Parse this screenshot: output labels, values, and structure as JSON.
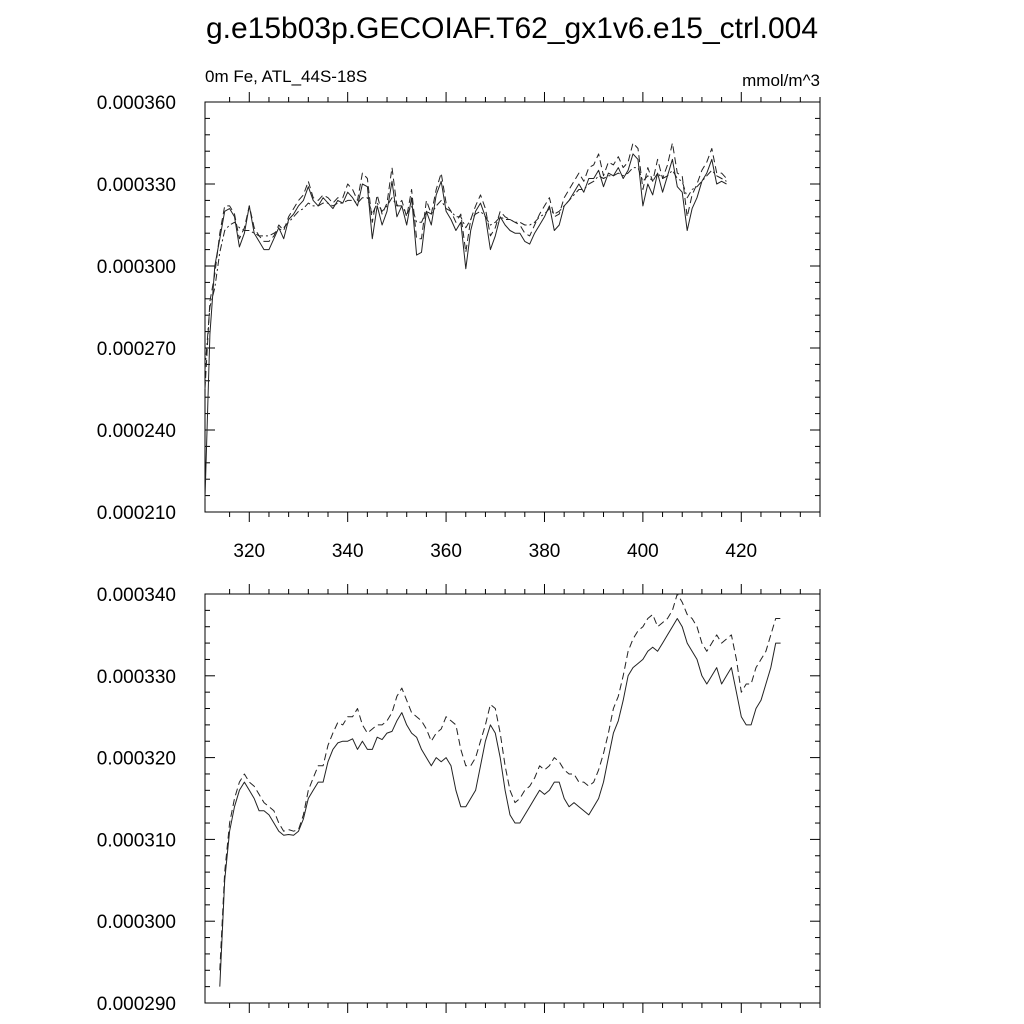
{
  "title": "g.e15b03p.GECOIAF.T62_gx1v6.e15_ctrl.004",
  "chart_data": [
    {
      "type": "line",
      "subtitle_left": "0m Fe, ATL_44S-18S",
      "subtitle_right": "mmol/m^3",
      "xlim": [
        311,
        436
      ],
      "ylim": [
        0.00021,
        0.00036
      ],
      "x_ticks": [
        320,
        340,
        360,
        380,
        400,
        420
      ],
      "x_tick_labels": [
        "320",
        "340",
        "360",
        "380",
        "400",
        "420"
      ],
      "y_ticks": [
        0.00021,
        0.00024,
        0.00027,
        0.0003,
        0.00033,
        0.00036
      ],
      "y_tick_labels": [
        "0.000210",
        "0.000240",
        "0.000270",
        "0.000300",
        "0.000330",
        "0.000360"
      ],
      "x_start": 311,
      "x_step": 1,
      "series": [
        {
          "style": "solid",
          "values": [
            0.000215,
            0.000275,
            0.0003,
            0.00031,
            0.00032,
            0.000321,
            0.000318,
            0.000307,
            0.000312,
            0.000322,
            0.000312,
            0.000309,
            0.000306,
            0.000306,
            0.00031,
            0.000314,
            0.00031,
            0.000317,
            0.000319,
            0.000322,
            0.000324,
            0.000329,
            0.000324,
            0.000322,
            0.000325,
            0.000323,
            0.000321,
            0.000324,
            0.000323,
            0.000327,
            0.000325,
            0.000322,
            0.00033,
            0.000329,
            0.00031,
            0.000322,
            0.000315,
            0.00032,
            0.000331,
            0.000318,
            0.000322,
            0.000315,
            0.000325,
            0.000304,
            0.000305,
            0.00032,
            0.000315,
            0.000326,
            0.000331,
            0.00032,
            0.000317,
            0.000313,
            0.000316,
            0.000299,
            0.000313,
            0.00032,
            0.000323,
            0.000318,
            0.000306,
            0.000311,
            0.000318,
            0.000315,
            0.000313,
            0.000312,
            0.000312,
            0.000309,
            0.000308,
            0.000312,
            0.000315,
            0.000318,
            0.000322,
            0.000313,
            0.000315,
            0.000322,
            0.000324,
            0.000327,
            0.00033,
            0.000327,
            0.000332,
            0.000332,
            0.000335,
            0.000329,
            0.000334,
            0.000333,
            0.000336,
            0.000332,
            0.000335,
            0.000341,
            0.000339,
            0.000322,
            0.00033,
            0.000326,
            0.000334,
            0.000327,
            0.000333,
            0.000339,
            0.000329,
            0.000327,
            0.000313,
            0.000321,
            0.000325,
            0.000331,
            0.000334,
            0.000339,
            0.00033,
            0.000331,
            0.00033
          ]
        },
        {
          "style": "dashed",
          "values": [
            0.000255,
            0.000287,
            0.000297,
            0.000312,
            0.000322,
            0.000322,
            0.000319,
            0.00031,
            0.000314,
            0.000322,
            0.000314,
            0.000311,
            0.000309,
            0.000309,
            0.000311,
            0.000315,
            0.000313,
            0.000318,
            0.000321,
            0.000324,
            0.000326,
            0.000331,
            0.000325,
            0.000324,
            0.000326,
            0.000325,
            0.000323,
            0.000325,
            0.000325,
            0.00033,
            0.000328,
            0.000324,
            0.000334,
            0.000332,
            0.000316,
            0.000326,
            0.000319,
            0.000323,
            0.000336,
            0.000322,
            0.000324,
            0.000318,
            0.000328,
            0.00031,
            0.00031,
            0.000324,
            0.000319,
            0.000328,
            0.000334,
            0.000323,
            0.00032,
            0.000316,
            0.000319,
            0.000305,
            0.000317,
            0.000322,
            0.000326,
            0.000321,
            0.000311,
            0.000314,
            0.00032,
            0.000318,
            0.000317,
            0.000316,
            0.000315,
            0.000312,
            0.000311,
            0.000315,
            0.000319,
            0.000322,
            0.000325,
            0.000318,
            0.000319,
            0.000325,
            0.000328,
            0.000331,
            0.000334,
            0.000331,
            0.000336,
            0.000337,
            0.000341,
            0.000333,
            0.000338,
            0.000337,
            0.00034,
            0.000336,
            0.000338,
            0.000345,
            0.000343,
            0.000328,
            0.000336,
            0.000331,
            0.000339,
            0.000332,
            0.000337,
            0.000345,
            0.000334,
            0.000333,
            0.000318,
            0.000326,
            0.00033,
            0.000335,
            0.000338,
            0.000343,
            0.000334,
            0.000334,
            0.000332
          ]
        },
        {
          "style": "dashdot",
          "values": [
            0.000262,
            0.000285,
            0.000292,
            0.000305,
            0.000313,
            0.000315,
            0.000316,
            0.000314,
            0.000313,
            0.000313,
            0.000312,
            0.000311,
            0.000311,
            0.000311,
            0.000312,
            0.000313,
            0.000314,
            0.000316,
            0.000318,
            0.00032,
            0.000321,
            0.000323,
            0.000322,
            0.000322,
            0.000323,
            0.000323,
            0.000322,
            0.000323,
            0.000323,
            0.000324,
            0.000324,
            0.000323,
            0.000325,
            0.000325,
            0.000319,
            0.000323,
            0.00032,
            0.000322,
            0.000325,
            0.000322,
            0.000322,
            0.000319,
            0.000322,
            0.000316,
            0.000316,
            0.00032,
            0.000319,
            0.000322,
            0.000324,
            0.000321,
            0.00032,
            0.000318,
            0.000318,
            0.000314,
            0.000317,
            0.000319,
            0.00032,
            0.000318,
            0.000315,
            0.000316,
            0.000318,
            0.000317,
            0.000317,
            0.000316,
            0.000316,
            0.000315,
            0.000315,
            0.000316,
            0.000318,
            0.000319,
            0.000321,
            0.000319,
            0.00032,
            0.000322,
            0.000324,
            0.000326,
            0.000328,
            0.000328,
            0.00033,
            0.000331,
            0.000333,
            0.000332,
            0.000333,
            0.000333,
            0.000334,
            0.000333,
            0.000334,
            0.000336,
            0.000336,
            0.000331,
            0.000333,
            0.000331,
            0.000334,
            0.000332,
            0.000333,
            0.000335,
            0.000332,
            0.000331,
            0.000325,
            0.000328,
            0.000329,
            0.000331,
            0.000333,
            0.000335,
            0.000333,
            0.000332,
            0.000331
          ]
        }
      ]
    },
    {
      "type": "line",
      "xlim": [
        311,
        436
      ],
      "ylim": [
        0.00029,
        0.00034
      ],
      "x_ticks": [
        320,
        340,
        360,
        380,
        400,
        420
      ],
      "y_ticks": [
        0.00029,
        0.0003,
        0.00031,
        0.00032,
        0.00033,
        0.00034
      ],
      "y_tick_labels": [
        "0.000290",
        "0.000300",
        "0.000310",
        "0.000320",
        "0.000330",
        "0.000340"
      ],
      "x_start": 314,
      "x_step": 1,
      "series": [
        {
          "style": "solid",
          "values": [
            0.000292,
            0.000305,
            0.000311,
            0.000314,
            0.000316,
            0.000317,
            0.000316,
            0.000315,
            0.0003135,
            0.0003135,
            0.000313,
            0.000312,
            0.000311,
            0.0003105,
            0.0003106,
            0.0003105,
            0.000311,
            0.0003125,
            0.000315,
            0.000316,
            0.000317,
            0.000317,
            0.0003195,
            0.000321,
            0.0003218,
            0.000322,
            0.000322,
            0.0003223,
            0.000321,
            0.000322,
            0.000321,
            0.000321,
            0.0003225,
            0.0003222,
            0.000323,
            0.0003232,
            0.0003245,
            0.0003255,
            0.000324,
            0.000323,
            0.0003225,
            0.000321,
            0.00032,
            0.000319,
            0.00032,
            0.0003195,
            0.00032,
            0.000319,
            0.000316,
            0.000314,
            0.000314,
            0.000315,
            0.000316,
            0.000319,
            0.000322,
            0.000324,
            0.000323,
            0.00032,
            0.000316,
            0.000313,
            0.000312,
            0.000312,
            0.000313,
            0.000314,
            0.000315,
            0.000316,
            0.0003155,
            0.000316,
            0.000317,
            0.000317,
            0.000315,
            0.000314,
            0.0003145,
            0.000314,
            0.0003135,
            0.000313,
            0.000314,
            0.000315,
            0.000317,
            0.00032,
            0.000323,
            0.0003245,
            0.000327,
            0.00033,
            0.000331,
            0.0003315,
            0.000332,
            0.000333,
            0.0003335,
            0.000333,
            0.000334,
            0.000335,
            0.000336,
            0.000337,
            0.000336,
            0.000334,
            0.000333,
            0.000332,
            0.00033,
            0.000329,
            0.00033,
            0.000331,
            0.000329,
            0.00033,
            0.000331,
            0.000328,
            0.000325,
            0.000324,
            0.000324,
            0.000326,
            0.000327,
            0.000329,
            0.000331,
            0.000334,
            0.000334
          ]
        },
        {
          "style": "dashed",
          "values": [
            0.000294,
            0.000306,
            0.000312,
            0.000315,
            0.000317,
            0.000318,
            0.000317,
            0.0003165,
            0.0003155,
            0.0003145,
            0.000314,
            0.0003135,
            0.000312,
            0.000311,
            0.0003112,
            0.000311,
            0.0003112,
            0.000313,
            0.000316,
            0.0003175,
            0.000319,
            0.000319,
            0.0003215,
            0.000323,
            0.0003243,
            0.000324,
            0.000325,
            0.000325,
            0.000326,
            0.000324,
            0.000323,
            0.0003235,
            0.000324,
            0.000324,
            0.0003245,
            0.0003255,
            0.0003275,
            0.0003285,
            0.000327,
            0.0003255,
            0.000325,
            0.0003245,
            0.0003235,
            0.000322,
            0.000323,
            0.0003235,
            0.000325,
            0.0003245,
            0.000324,
            0.000321,
            0.000319,
            0.000319,
            0.00032,
            0.000322,
            0.000324,
            0.0003265,
            0.000326,
            0.000323,
            0.000319,
            0.000316,
            0.0003145,
            0.000315,
            0.000316,
            0.0003165,
            0.0003175,
            0.000319,
            0.0003185,
            0.000319,
            0.00032,
            0.0003195,
            0.0003185,
            0.000318,
            0.000318,
            0.000317,
            0.000317,
            0.0003165,
            0.000317,
            0.0003185,
            0.0003205,
            0.000323,
            0.000326,
            0.0003275,
            0.00033,
            0.000333,
            0.0003345,
            0.0003355,
            0.000336,
            0.000337,
            0.0003375,
            0.000336,
            0.0003365,
            0.000337,
            0.000338,
            0.00034,
            0.000339,
            0.0003375,
            0.000337,
            0.000336,
            0.000334,
            0.000333,
            0.000334,
            0.000335,
            0.000334,
            0.0003345,
            0.000335,
            0.000332,
            0.000328,
            0.000329,
            0.000329,
            0.000331,
            0.000332,
            0.000333,
            0.000335,
            0.000337,
            0.000337
          ]
        }
      ]
    }
  ]
}
